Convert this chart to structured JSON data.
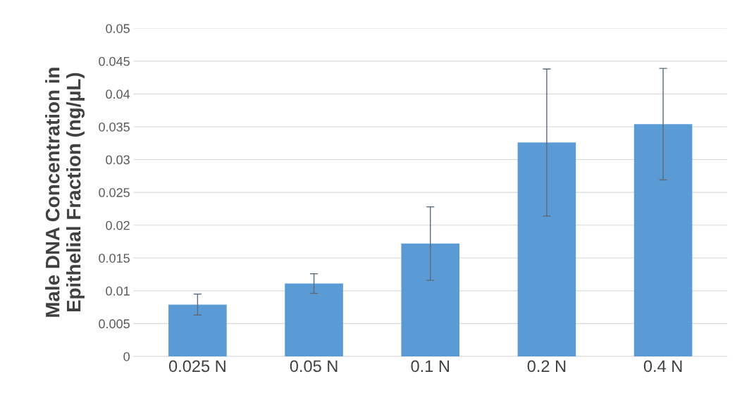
{
  "chart_data": {
    "type": "bar",
    "ylabel": "Male DNA Concentration in\nEpithelial Fraction (ng/µL)",
    "categories": [
      "0.025 N",
      "0.05 N",
      "0.1 N",
      "0.2 N",
      "0.4 N"
    ],
    "values": [
      0.0079,
      0.0111,
      0.0172,
      0.0326,
      0.0354
    ],
    "errors": [
      0.0016,
      0.0015,
      0.0056,
      0.0112,
      0.0085
    ],
    "color": "#5b9bd5",
    "ylim": [
      0,
      0.05
    ],
    "yticks": [
      0,
      0.005,
      0.01,
      0.015,
      0.02,
      0.025,
      0.03,
      0.035,
      0.04,
      0.045,
      0.05
    ],
    "grid": "y"
  }
}
